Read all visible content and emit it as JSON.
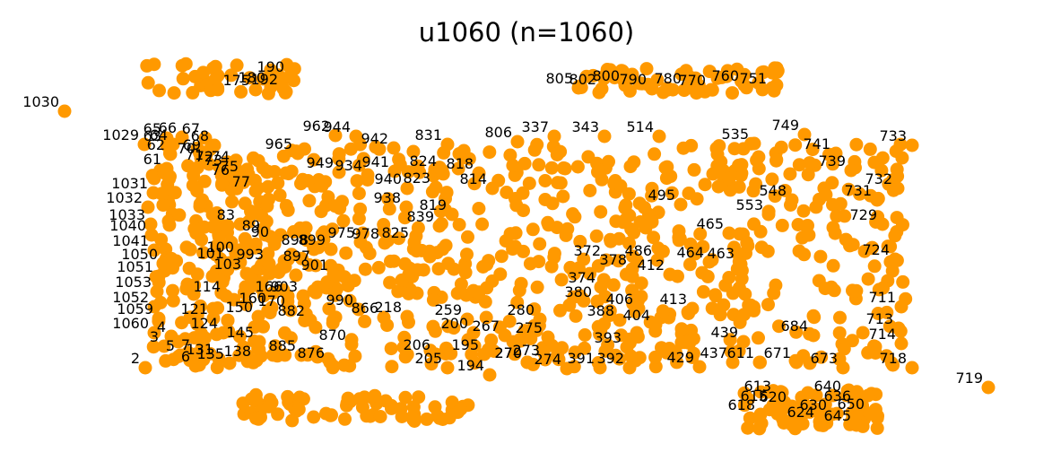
{
  "title": "u1060  (n=1060)",
  "node_color": "#ff9900",
  "label_color": "#000000",
  "chart_data": {
    "type": "scatter",
    "nodes": [
      {
        "id": "1030"
      },
      {
        "id": "1029"
      },
      {
        "id": "719"
      },
      {
        "id": "733"
      },
      {
        "id": "965"
      },
      {
        "id": "962"
      },
      {
        "id": "944"
      },
      {
        "id": "942"
      },
      {
        "id": "949"
      },
      {
        "id": "934"
      },
      {
        "id": "941"
      },
      {
        "id": "940"
      },
      {
        "id": "938"
      },
      {
        "id": "831"
      },
      {
        "id": "806"
      },
      {
        "id": "337"
      },
      {
        "id": "343"
      },
      {
        "id": "514"
      },
      {
        "id": "535"
      },
      {
        "id": "749"
      },
      {
        "id": "741"
      },
      {
        "id": "739"
      },
      {
        "id": "732"
      },
      {
        "id": "731"
      },
      {
        "id": "729"
      },
      {
        "id": "724"
      },
      {
        "id": "718"
      },
      {
        "id": "714"
      },
      {
        "id": "713"
      },
      {
        "id": "711"
      },
      {
        "id": "673"
      },
      {
        "id": "671"
      },
      {
        "id": "684"
      },
      {
        "id": "553"
      },
      {
        "id": "548"
      },
      {
        "id": "495"
      },
      {
        "id": "486"
      },
      {
        "id": "464"
      },
      {
        "id": "463"
      },
      {
        "id": "465"
      },
      {
        "id": "429"
      },
      {
        "id": "437"
      },
      {
        "id": "439"
      },
      {
        "id": "412"
      },
      {
        "id": "413"
      },
      {
        "id": "404"
      },
      {
        "id": "406"
      },
      {
        "id": "392"
      },
      {
        "id": "391"
      },
      {
        "id": "393"
      },
      {
        "id": "388"
      },
      {
        "id": "380"
      },
      {
        "id": "374"
      },
      {
        "id": "372"
      },
      {
        "id": "378"
      },
      {
        "id": "274"
      },
      {
        "id": "273"
      },
      {
        "id": "270"
      },
      {
        "id": "280"
      },
      {
        "id": "267"
      },
      {
        "id": "259"
      },
      {
        "id": "205"
      },
      {
        "id": "206"
      },
      {
        "id": "194"
      },
      {
        "id": "195"
      },
      {
        "id": "200"
      },
      {
        "id": "218"
      },
      {
        "id": "866"
      },
      {
        "id": "876"
      },
      {
        "id": "882"
      },
      {
        "id": "885"
      },
      {
        "id": "870"
      },
      {
        "id": "819"
      },
      {
        "id": "839"
      },
      {
        "id": "814"
      },
      {
        "id": "818"
      },
      {
        "id": "824"
      },
      {
        "id": "823"
      },
      {
        "id": "825"
      },
      {
        "id": "898"
      },
      {
        "id": "899"
      },
      {
        "id": "897"
      },
      {
        "id": "901"
      },
      {
        "id": "903"
      },
      {
        "id": "975"
      },
      {
        "id": "978"
      },
      {
        "id": "990"
      },
      {
        "id": "993"
      },
      {
        "id": "1050"
      },
      {
        "id": "1051"
      },
      {
        "id": "1060"
      },
      {
        "id": "1059"
      },
      {
        "id": "1052"
      },
      {
        "id": "1053"
      },
      {
        "id": "1031"
      },
      {
        "id": "1032"
      },
      {
        "id": "1033"
      },
      {
        "id": "1040"
      },
      {
        "id": "1041"
      },
      {
        "id": "2"
      },
      {
        "id": "3"
      },
      {
        "id": "4"
      },
      {
        "id": "5"
      },
      {
        "id": "6"
      },
      {
        "id": "7"
      },
      {
        "id": "61"
      },
      {
        "id": "62"
      },
      {
        "id": "63"
      },
      {
        "id": "64"
      },
      {
        "id": "65"
      },
      {
        "id": "66"
      },
      {
        "id": "67"
      },
      {
        "id": "68"
      },
      {
        "id": "69"
      },
      {
        "id": "70"
      },
      {
        "id": "71"
      },
      {
        "id": "72"
      },
      {
        "id": "73"
      },
      {
        "id": "74"
      },
      {
        "id": "75"
      },
      {
        "id": "76"
      },
      {
        "id": "77"
      },
      {
        "id": "83"
      },
      {
        "id": "89"
      },
      {
        "id": "90"
      },
      {
        "id": "100"
      },
      {
        "id": "101"
      },
      {
        "id": "103"
      },
      {
        "id": "114"
      },
      {
        "id": "121"
      },
      {
        "id": "124"
      },
      {
        "id": "131"
      },
      {
        "id": "135"
      },
      {
        "id": "138"
      },
      {
        "id": "145"
      },
      {
        "id": "150"
      },
      {
        "id": "160"
      },
      {
        "id": "166"
      },
      {
        "id": "170"
      },
      {
        "id": "175"
      },
      {
        "id": "180"
      },
      {
        "id": "190"
      },
      {
        "id": "192"
      },
      {
        "id": "611"
      },
      {
        "id": "613"
      },
      {
        "id": "615"
      },
      {
        "id": "618"
      },
      {
        "id": "620"
      },
      {
        "id": "624"
      },
      {
        "id": "630"
      },
      {
        "id": "636"
      },
      {
        "id": "640"
      },
      {
        "id": "645"
      },
      {
        "id": "650"
      },
      {
        "id": "751"
      },
      {
        "id": "760"
      },
      {
        "id": "770"
      },
      {
        "id": "780"
      },
      {
        "id": "790"
      },
      {
        "id": "800"
      },
      {
        "id": "802"
      },
      {
        "id": "805"
      },
      {
        "id": "270"
      },
      {
        "id": "275"
      }
    ]
  }
}
